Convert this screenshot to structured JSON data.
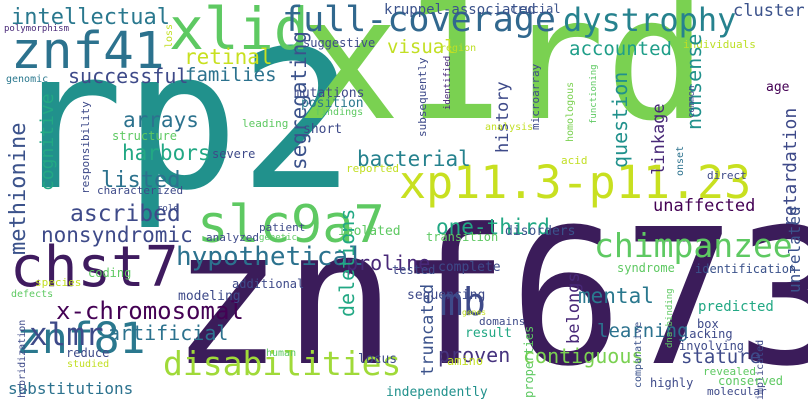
{
  "words": [
    {
      "text": "rp2",
      "color": "#21918c"
    },
    {
      "text": "x1rd",
      "color": "#7ad151"
    },
    {
      "text": "znf673",
      "color": "#3b1c5a"
    },
    {
      "text": "slc9a7",
      "color": "#5ec962"
    },
    {
      "text": "xp11.3-p11.23",
      "color": "#c8e020"
    },
    {
      "text": "chst7",
      "color": "#3f1b5f"
    },
    {
      "text": "znf41",
      "color": "#2c728e"
    },
    {
      "text": "xlid",
      "color": "#5ec962"
    },
    {
      "text": "full-coverage",
      "color": "#31688e"
    },
    {
      "text": "dystrophy",
      "color": "#26828e"
    },
    {
      "text": "chimpanzee",
      "color": "#5ec962"
    },
    {
      "text": "hypothetical",
      "color": "#2c728e"
    },
    {
      "text": "x-chromosomal",
      "color": "#440154"
    },
    {
      "text": "znf81",
      "color": "#2a788e"
    },
    {
      "text": "mb",
      "color": "#3e4a89"
    },
    {
      "text": "disabilities",
      "color": "#a0da39"
    },
    {
      "text": "intellectual",
      "color": "#2a788e"
    },
    {
      "text": "retinal",
      "color": "#c8e020"
    },
    {
      "text": "successful",
      "color": "#3e4a89"
    },
    {
      "text": "families",
      "color": "#2c728e"
    },
    {
      "text": "accounted",
      "color": "#1f9e89"
    },
    {
      "text": "visual",
      "color": "#c2df23"
    },
    {
      "text": "cluster",
      "color": "#3b528b"
    },
    {
      "text": "kruppel-associated",
      "color": "#3b528b"
    },
    {
      "text": "crucial",
      "color": "#3b528b"
    },
    {
      "text": "polymorphism",
      "color": "#482878"
    },
    {
      "text": "suggestive",
      "color": "#3e4a89"
    },
    {
      "text": "individuals",
      "color": "#bddf26"
    },
    {
      "text": "region",
      "color": "#bddf26"
    },
    {
      "text": "segregating",
      "color": "#3b528b"
    },
    {
      "text": "history",
      "color": "#3e4a89"
    },
    {
      "text": "nonsense",
      "color": "#21918c"
    },
    {
      "text": "retardation",
      "color": "#3e4a89"
    },
    {
      "text": "arrays",
      "color": "#2c728e"
    },
    {
      "text": "harbors",
      "color": "#22a884"
    },
    {
      "text": "cognitive",
      "color": "#22a884"
    },
    {
      "text": "methionine",
      "color": "#3b528b"
    },
    {
      "text": "listed",
      "color": "#2c728e"
    },
    {
      "text": "ascribed",
      "color": "#3e4a89"
    },
    {
      "text": "nonsyndromic",
      "color": "#3e4a89"
    },
    {
      "text": "bacterial",
      "color": "#26828e"
    },
    {
      "text": "one-third",
      "color": "#22a884"
    },
    {
      "text": "unaffected",
      "color": "#440154"
    },
    {
      "text": "linkage",
      "color": "#482878"
    },
    {
      "text": "question",
      "color": "#21918c"
    },
    {
      "text": "mental",
      "color": "#2a788e"
    },
    {
      "text": "learning",
      "color": "#2c728e"
    },
    {
      "text": "proline",
      "color": "#482878"
    },
    {
      "text": "artificial",
      "color": "#2c728e"
    },
    {
      "text": "xlmr",
      "color": "#3e4a89"
    },
    {
      "text": "substitutions",
      "color": "#2c728e"
    },
    {
      "text": "proven",
      "color": "#46337e"
    },
    {
      "text": "contiguous",
      "color": "#7ad151"
    },
    {
      "text": "stature",
      "color": "#3e4a89"
    },
    {
      "text": "deletions",
      "color": "#22a884"
    },
    {
      "text": "truncated",
      "color": "#3b528b"
    },
    {
      "text": "belongs",
      "color": "#482878"
    },
    {
      "text": "unrelated",
      "color": "#3b528b"
    },
    {
      "text": "mutations",
      "color": "#3e4a89"
    },
    {
      "text": "position",
      "color": "#2a788e"
    },
    {
      "text": "findings",
      "color": "#5ec962"
    },
    {
      "text": "short",
      "color": "#3e4a89"
    },
    {
      "text": "leading",
      "color": "#5ec962"
    },
    {
      "text": "structure",
      "color": "#5ec962"
    },
    {
      "text": "severe",
      "color": "#3e4a89"
    },
    {
      "text": "characterized",
      "color": "#3e4a89"
    },
    {
      "text": "responsibility",
      "color": "#3e4a89"
    },
    {
      "text": "genomic",
      "color": "#2a788e"
    },
    {
      "text": "loss",
      "color": "#c2df23"
    },
    {
      "text": "subsequently",
      "color": "#3e4a89"
    },
    {
      "text": "identified",
      "color": "#482878"
    },
    {
      "text": "microarray",
      "color": "#3e4a89"
    },
    {
      "text": "homologous",
      "color": "#7ad151"
    },
    {
      "text": "functioning",
      "color": "#5ec962"
    },
    {
      "text": "common",
      "color": "#3e4a89"
    },
    {
      "text": "analysis",
      "color": "#c2df23"
    },
    {
      "text": "age",
      "color": "#440154"
    },
    {
      "text": "acid",
      "color": "#c2df23"
    },
    {
      "text": "onset",
      "color": "#2c728e"
    },
    {
      "text": "direct",
      "color": "#3e4a89"
    },
    {
      "text": "reported",
      "color": "#c2df23"
    },
    {
      "text": "role",
      "color": "#3e4a89"
    },
    {
      "text": "patient",
      "color": "#3e4a89"
    },
    {
      "text": "genetic",
      "color": "#5ec962"
    },
    {
      "text": "analyzed",
      "color": "#3e4a89"
    },
    {
      "text": "isolated",
      "color": "#5ec962"
    },
    {
      "text": "transition",
      "color": "#5ec962"
    },
    {
      "text": "disorders",
      "color": "#3b528b"
    },
    {
      "text": "complete",
      "color": "#3e4a89"
    },
    {
      "text": "tested",
      "color": "#3e4a89"
    },
    {
      "text": "syndrome",
      "color": "#5ec962"
    },
    {
      "text": "identification",
      "color": "#3b528b"
    },
    {
      "text": "defects",
      "color": "#5ec962"
    },
    {
      "text": "coding",
      "color": "#5ec962"
    },
    {
      "text": "species",
      "color": "#c2df23"
    },
    {
      "text": "additional",
      "color": "#3e4a89"
    },
    {
      "text": "modeling",
      "color": "#3e4a89"
    },
    {
      "text": "sequencing",
      "color": "#3e4a89"
    },
    {
      "text": "genes",
      "color": "#c2df23"
    },
    {
      "text": "domains",
      "color": "#3e4a89"
    },
    {
      "text": "predicted",
      "color": "#22a884"
    },
    {
      "text": "box",
      "color": "#3e4a89"
    },
    {
      "text": "lacking",
      "color": "#3e4a89"
    },
    {
      "text": "involving",
      "color": "#3e4a89"
    },
    {
      "text": "dna-binding",
      "color": "#5ec962"
    },
    {
      "text": "result",
      "color": "#22a884"
    },
    {
      "text": "comparative",
      "color": "#3b528b"
    },
    {
      "text": "highly",
      "color": "#3e4a89"
    },
    {
      "text": "revealed",
      "color": "#5ec962"
    },
    {
      "text": "implicated",
      "color": "#3e4a89"
    },
    {
      "text": "hybridization",
      "color": "#3e4a89"
    },
    {
      "text": "reduce",
      "color": "#3e4a89"
    },
    {
      "text": "studied",
      "color": "#c2df23"
    },
    {
      "text": "human",
      "color": "#5ec962"
    },
    {
      "text": "locus",
      "color": "#3e4a89"
    },
    {
      "text": "properties",
      "color": "#5ec962"
    },
    {
      "text": "amino",
      "color": "#c2df23"
    },
    {
      "text": "conserved",
      "color": "#5ec962"
    },
    {
      "text": "independently",
      "color": "#21918c"
    },
    {
      "text": "molecular",
      "color": "#3e4a89"
    }
  ]
}
